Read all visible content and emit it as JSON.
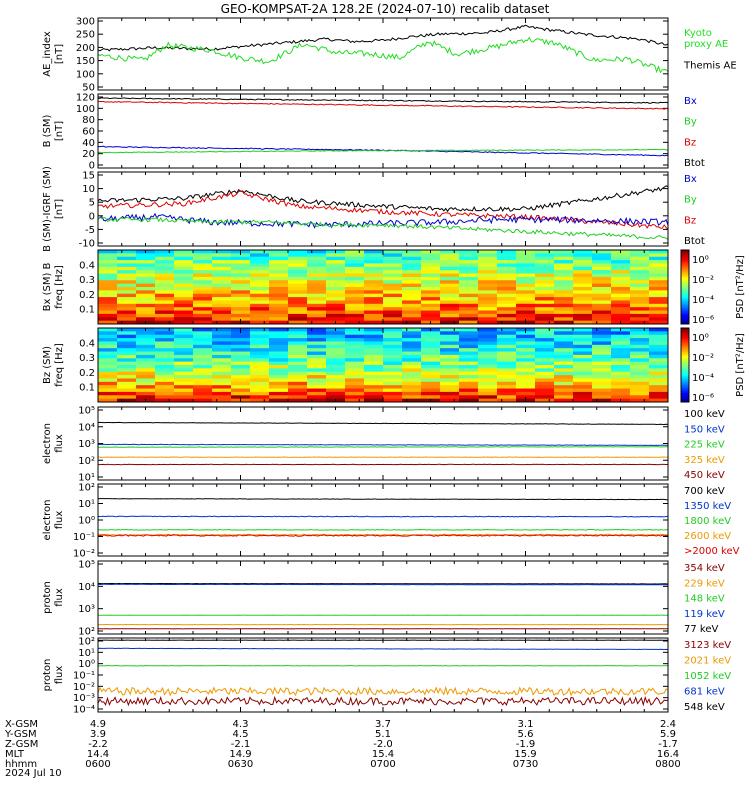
{
  "title": "GEO-KOMPSAT-2A 128.2E (2024-07-10) recalib dataset",
  "chart_data": [
    {
      "type": "line",
      "ylabel": [
        "AE_index",
        "[nT]"
      ],
      "yticks": [
        "300",
        "250",
        "200",
        "150",
        "100",
        "50"
      ],
      "ylim": [
        30,
        320
      ],
      "log": false,
      "legend": [
        {
          "label": "Kyoto",
          "color": "#22dd22"
        },
        {
          "label": "proxy AE",
          "color": "#22dd22"
        },
        {
          "label": "Themis AE",
          "color": "#000000"
        }
      ],
      "series": [
        {
          "name": "Themis AE",
          "color": "#000000",
          "x": [
            0,
            0.1,
            0.2,
            0.3,
            0.4,
            0.45,
            0.5,
            0.55,
            0.6,
            0.68,
            0.75,
            0.8,
            0.85,
            0.9,
            0.95,
            1
          ],
          "values": [
            190,
            200,
            195,
            215,
            235,
            225,
            230,
            245,
            255,
            260,
            285,
            270,
            255,
            245,
            235,
            210
          ],
          "noise": 6
        },
        {
          "name": "proxy AE",
          "color": "#22dd22",
          "x": [
            0,
            0.08,
            0.12,
            0.2,
            0.25,
            0.3,
            0.36,
            0.42,
            0.48,
            0.53,
            0.58,
            0.63,
            0.7,
            0.75,
            0.8,
            0.87,
            0.93,
            1
          ],
          "values": [
            170,
            150,
            210,
            190,
            160,
            145,
            215,
            180,
            175,
            160,
            225,
            175,
            205,
            235,
            220,
            150,
            155,
            100
          ],
          "noise": 12
        }
      ]
    },
    {
      "type": "line",
      "ylabel": [
        "B (SM)",
        "[nT]"
      ],
      "yticks": [
        "120",
        "100",
        "80",
        "60",
        "40",
        "20",
        "0"
      ],
      "ylim": [
        0,
        125
      ],
      "log": false,
      "legend": [
        {
          "label": "Bx",
          "color": "#0000cc"
        },
        {
          "label": "By",
          "color": "#22cc22"
        },
        {
          "label": "Bz",
          "color": "#dd0000"
        },
        {
          "label": "Btot",
          "color": "#000000"
        }
      ],
      "series": [
        {
          "name": "Btot",
          "color": "#000000",
          "x": [
            0,
            1
          ],
          "values": [
            118,
            110
          ],
          "noise": 0.8
        },
        {
          "name": "Bz",
          "color": "#dd0000",
          "x": [
            0,
            1
          ],
          "values": [
            112,
            100
          ],
          "noise": 0.8
        },
        {
          "name": "Bx",
          "color": "#0000cc",
          "x": [
            0,
            0.5,
            1
          ],
          "values": [
            36,
            30,
            21
          ],
          "noise": 0.8
        },
        {
          "name": "By",
          "color": "#22cc22",
          "x": [
            0,
            0.4,
            1
          ],
          "values": [
            26,
            29,
            31
          ],
          "noise": 0.6
        }
      ]
    },
    {
      "type": "line",
      "ylabel": [
        "B (SM)-IGRF (SM)",
        "[nT]"
      ],
      "yticks": [
        "15",
        "10",
        "5",
        "0",
        "-5",
        "-10"
      ],
      "ylim": [
        -12,
        16
      ],
      "log": false,
      "legend": [
        {
          "label": "Bx",
          "color": "#0000cc"
        },
        {
          "label": "By",
          "color": "#22cc22"
        },
        {
          "label": "Bz",
          "color": "#dd0000"
        },
        {
          "label": "Btot",
          "color": "#000000"
        }
      ],
      "series": [
        {
          "name": "Btot",
          "color": "#000000",
          "x": [
            0,
            0.15,
            0.25,
            0.35,
            0.5,
            0.6,
            0.75,
            0.88,
            1
          ],
          "values": [
            5,
            6,
            9,
            5,
            3,
            2,
            2,
            6,
            10
          ],
          "noise": 0.9
        },
        {
          "name": "Bz",
          "color": "#dd0000",
          "x": [
            0,
            0.15,
            0.25,
            0.35,
            0.5,
            0.6,
            0.75,
            0.88,
            1
          ],
          "values": [
            3,
            4,
            8,
            3,
            1,
            0,
            -1,
            -3,
            -5
          ],
          "noise": 0.9
        },
        {
          "name": "Bx",
          "color": "#0000cc",
          "x": [
            0,
            0.1,
            0.2,
            0.4,
            0.6,
            0.7,
            0.8,
            1
          ],
          "values": [
            -2,
            -1,
            -3,
            -4,
            -3,
            -2,
            -2,
            -3
          ],
          "noise": 1.2
        },
        {
          "name": "By",
          "color": "#22cc22",
          "x": [
            0,
            0.1,
            0.2,
            0.3,
            0.4,
            0.5,
            0.6,
            0.7,
            0.8,
            0.9,
            1
          ],
          "values": [
            -2,
            -2,
            -3,
            -3,
            -4,
            -4,
            -5,
            -6,
            -7,
            -8,
            -9
          ],
          "noise": 0.8
        }
      ]
    },
    {
      "type": "heatmap",
      "ylabel": [
        "Bx (SM)  B",
        "freq [Hz]"
      ],
      "yticks": [
        "0.4",
        "0.3",
        "0.2",
        "0.1"
      ],
      "ylim": [
        0,
        0.5
      ],
      "colorbar": {
        "label": "PSD [nT²/Hz]",
        "ticks": [
          "10⁰",
          "10⁻²",
          "10⁻⁴",
          "10⁻⁶"
        ]
      }
    },
    {
      "type": "heatmap",
      "ylabel": [
        "Bz (SM)",
        "freq [Hz]"
      ],
      "yticks": [
        "0.4",
        "0.3",
        "0.2",
        "0.1"
      ],
      "ylim": [
        0,
        0.5
      ],
      "colorbar": {
        "label": "PSD [nT²/Hz]",
        "ticks": [
          "10⁰",
          "10⁻²",
          "10⁻⁴",
          "10⁻⁶"
        ]
      }
    },
    {
      "type": "line",
      "ylabel": [
        "electron",
        "flux"
      ],
      "yticks": [
        "10⁵",
        "10⁴",
        "10³",
        "10²",
        "10¹"
      ],
      "ylim": [
        1,
        5
      ],
      "log": true,
      "legend": [
        {
          "label": "100 keV",
          "color": "#000000"
        },
        {
          "label": "150 keV",
          "color": "#0033cc"
        },
        {
          "label": "225 keV",
          "color": "#22cc22"
        },
        {
          "label": "325 keV",
          "color": "#ee9900"
        },
        {
          "label": "450 keV",
          "color": "#880000"
        }
      ],
      "series": [
        {
          "name": "100 keV",
          "color": "#000000",
          "x": [
            0,
            1
          ],
          "values": [
            4.15,
            4.05
          ],
          "noise": 0.01
        },
        {
          "name": "150 keV",
          "color": "#0033cc",
          "x": [
            0,
            1
          ],
          "values": [
            2.95,
            2.9
          ],
          "noise": 0.01
        },
        {
          "name": "225 keV",
          "color": "#22cc22",
          "x": [
            0,
            1
          ],
          "values": [
            2.8,
            2.82
          ],
          "noise": 0.01
        },
        {
          "name": "325 keV",
          "color": "#ee9900",
          "x": [
            0,
            1
          ],
          "values": [
            2.25,
            2.25
          ],
          "noise": 0.01
        },
        {
          "name": "450 keV",
          "color": "#880000",
          "x": [
            0,
            1
          ],
          "values": [
            1.85,
            1.85
          ],
          "noise": 0.01
        }
      ]
    },
    {
      "type": "line",
      "ylabel": [
        "electron",
        "flux"
      ],
      "yticks": [
        "10²",
        "10¹",
        "10⁰",
        "10⁻¹",
        "10⁻²"
      ],
      "ylim": [
        -2.4,
        2
      ],
      "log": true,
      "legend": [
        {
          "label": "700 keV",
          "color": "#000000"
        },
        {
          "label": "1350 keV",
          "color": "#0033cc"
        },
        {
          "label": "1800 keV",
          "color": "#22cc22"
        },
        {
          "label": "2600 keV",
          "color": "#ee9900"
        },
        {
          "label": ">2000 keV",
          "color": "#dd0000"
        }
      ],
      "series": [
        {
          "name": "700 keV",
          "color": "#000000",
          "x": [
            0,
            1
          ],
          "values": [
            1.1,
            1.05
          ],
          "noise": 0.01
        },
        {
          "name": "1350 keV",
          "color": "#0033cc",
          "x": [
            0,
            1
          ],
          "values": [
            0.02,
            0.0
          ],
          "noise": 0.02
        },
        {
          "name": "1800 keV",
          "color": "#22cc22",
          "x": [
            0,
            1
          ],
          "values": [
            -0.8,
            -0.8
          ],
          "noise": 0.02
        },
        {
          "name": "2600 keV",
          "color": "#ee9900",
          "x": [
            0,
            1
          ],
          "values": [
            -1.1,
            -1.1
          ],
          "noise": 0.03
        },
        {
          "name": ">2000 keV",
          "color": "#dd0000",
          "x": [
            0,
            1
          ],
          "values": [
            -1.15,
            -1.15
          ],
          "noise": 0.04
        }
      ]
    },
    {
      "type": "line",
      "ylabel": [
        "proton",
        "flux"
      ],
      "yticks": [
        "10⁵",
        "10⁴",
        "10³",
        "10²"
      ],
      "ylim": [
        1.7,
        5.2
      ],
      "log": true,
      "legend": [
        {
          "label": "354 keV",
          "color": "#880000"
        },
        {
          "label": "229 keV",
          "color": "#ee9900"
        },
        {
          "label": "148 keV",
          "color": "#22cc22"
        },
        {
          "label": "119 keV",
          "color": "#0033cc"
        },
        {
          "label": "77 keV",
          "color": "#000000"
        }
      ],
      "series": [
        {
          "name": "77 keV",
          "color": "#000000",
          "x": [
            0,
            1
          ],
          "values": [
            4.12,
            4.1
          ],
          "noise": 0.005
        },
        {
          "name": "119 keV",
          "color": "#0033cc",
          "x": [
            0,
            1
          ],
          "values": [
            4.08,
            4.06
          ],
          "noise": 0.005
        },
        {
          "name": "148 keV",
          "color": "#22cc22",
          "x": [
            0,
            1
          ],
          "values": [
            2.6,
            2.6
          ],
          "noise": 0.005
        },
        {
          "name": "229 keV",
          "color": "#ee9900",
          "x": [
            0,
            1
          ],
          "values": [
            2.15,
            2.15
          ],
          "noise": 0.005
        },
        {
          "name": "354 keV",
          "color": "#880000",
          "x": [
            0,
            1
          ],
          "values": [
            1.95,
            1.95
          ],
          "noise": 0.005
        }
      ]
    },
    {
      "type": "line",
      "ylabel": [
        "proton",
        "flux"
      ],
      "yticks": [
        "10²",
        "10¹",
        "10⁰",
        "10⁻¹",
        "10⁻²",
        "10⁻³",
        "10⁻⁴"
      ],
      "ylim": [
        -4.4,
        2.4
      ],
      "log": true,
      "legend": [
        {
          "label": "3123 keV",
          "color": "#880000"
        },
        {
          "label": "2021 keV",
          "color": "#ee9900"
        },
        {
          "label": "1052 keV",
          "color": "#22cc22"
        },
        {
          "label": "681 keV",
          "color": "#0033cc"
        },
        {
          "label": "548 keV",
          "color": "#000000"
        }
      ],
      "series": [
        {
          "name": "548 keV",
          "color": "#000000",
          "x": [
            0,
            1
          ],
          "values": [
            2.2,
            2.2
          ],
          "noise": 0.01
        },
        {
          "name": "681 keV",
          "color": "#0033cc",
          "x": [
            0,
            1
          ],
          "values": [
            1.45,
            1.35
          ],
          "noise": 0.01
        },
        {
          "name": "1052 keV",
          "color": "#22cc22",
          "x": [
            0,
            1
          ],
          "values": [
            -0.15,
            -0.15
          ],
          "noise": 0.02
        },
        {
          "name": "2021 keV",
          "color": "#ee9900",
          "x": [
            0,
            1
          ],
          "values": [
            -2.5,
            -2.5
          ],
          "noise": 0.35
        },
        {
          "name": "3123 keV",
          "color": "#880000",
          "x": [
            0,
            1
          ],
          "values": [
            -3.4,
            -3.4
          ],
          "noise": 0.35
        }
      ]
    }
  ],
  "footer": {
    "row_labels": [
      "X-GSM",
      "Y-GSM",
      "Z-GSM",
      "MLT",
      "hhmm",
      "2024 Jul 10"
    ],
    "columns": [
      {
        "x": [
          "4.9"
        ],
        "y": [
          "3.9"
        ],
        "z": [
          "-2.2"
        ],
        "mlt": [
          "14.4"
        ],
        "hhmm": [
          "0600"
        ]
      },
      {
        "x": [
          "4.3"
        ],
        "y": [
          "4.5"
        ],
        "z": [
          "-2.1"
        ],
        "mlt": [
          "14.9"
        ],
        "hhmm": [
          "0630"
        ]
      },
      {
        "x": [
          "3.7"
        ],
        "y": [
          "5.1"
        ],
        "z": [
          "-2.0"
        ],
        "mlt": [
          "15.4"
        ],
        "hhmm": [
          "0700"
        ]
      },
      {
        "x": [
          "3.1"
        ],
        "y": [
          "5.6"
        ],
        "z": [
          "-1.9"
        ],
        "mlt": [
          "15.9"
        ],
        "hhmm": [
          "0730"
        ]
      },
      {
        "x": [
          "2.4"
        ],
        "y": [
          "5.9"
        ],
        "z": [
          "-1.7"
        ],
        "mlt": [
          "16.4"
        ],
        "hhmm": [
          "0800"
        ]
      }
    ]
  }
}
